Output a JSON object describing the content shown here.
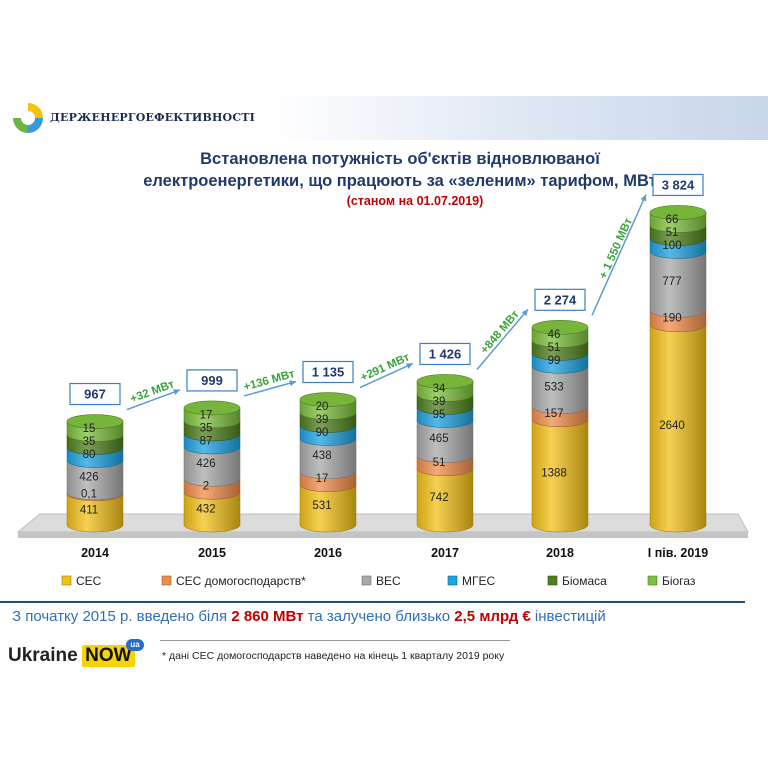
{
  "header": {
    "organization": "ДЕРЖЕНЕРГОЕФЕКТИВНОСТІ"
  },
  "chart_data": {
    "type": "bar",
    "stacked": true,
    "title_line1": "Встановлена потужність об'єктів відновлюваної",
    "title_line2": "електроенергетики, що працюють за «зеленим» тарифом, МВт",
    "subtitle": "(станом на 01.07.2019)",
    "categories": [
      "2014",
      "2015",
      "2016",
      "2017",
      "2018",
      "І пів. 2019"
    ],
    "totals": [
      "967",
      "999",
      "1 135",
      "1 426",
      "2 274",
      "3 824"
    ],
    "series": [
      {
        "name": "СЕС",
        "color": "#f2c018",
        "values": [
          411,
          432,
          531,
          742,
          1388,
          2640
        ],
        "labels": [
          "411",
          "432",
          "531",
          "742",
          "1388",
          "2640"
        ]
      },
      {
        "name": "СЕС домогосподарств*",
        "color": "#f08c4a",
        "values": [
          0.1,
          2,
          17,
          51,
          157,
          190
        ],
        "labels": [
          "0,1",
          "2",
          "17",
          "51",
          "157",
          "190"
        ]
      },
      {
        "name": "ВЕС",
        "color": "#a9a9a9",
        "values": [
          426,
          426,
          438,
          465,
          533,
          777
        ],
        "labels": [
          "426",
          "426",
          "438",
          "465",
          "533",
          "777"
        ]
      },
      {
        "name": "МГЕС",
        "color": "#1ea1e0",
        "values": [
          80,
          87,
          90,
          95,
          99,
          100
        ],
        "labels": [
          "80",
          "87",
          "90",
          "95",
          "99",
          "100"
        ]
      },
      {
        "name": "Біомаса",
        "color": "#4f7f1e",
        "values": [
          35,
          35,
          39,
          39,
          51,
          51
        ],
        "labels": [
          "35",
          "35",
          "39",
          "39",
          "51",
          "51"
        ]
      },
      {
        "name": "Біогаз",
        "color": "#7cbf3c",
        "values": [
          15,
          17,
          20,
          34,
          46,
          66
        ],
        "labels": [
          "15",
          "17",
          "20",
          "34",
          "46",
          "66"
        ]
      }
    ],
    "growth_labels": [
      "+32 МВт",
      "+136 МВт",
      "+291 МВт",
      "+848 МВт",
      "+ 1 550 МВт"
    ],
    "legend_position": "bottom"
  },
  "info": {
    "part1": "З початку 2015 р. введено  біля ",
    "highlight1": "2 860 МВт",
    "part2": " та залучено близько  ",
    "highlight2": "2,5 млрд €",
    "part3": " інвестицій"
  },
  "brand": {
    "ukraine": "Ukraine",
    "now": "NOW",
    "ua": "ua"
  },
  "footnote": "*  дані СЕС домогосподарств  наведено  на кінець  1 кварталу 2019 року"
}
